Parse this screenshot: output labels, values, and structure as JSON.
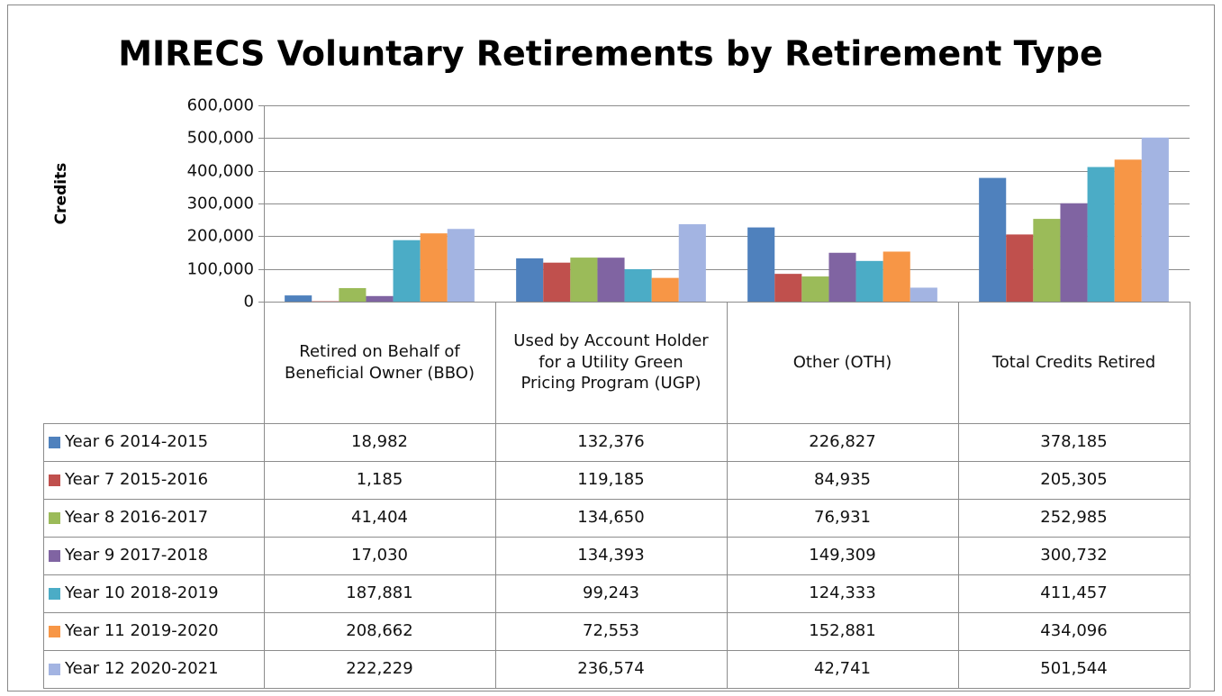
{
  "chart_data": {
    "type": "bar",
    "title": "MIRECS Voluntary Retirements by Retirement Type",
    "y_label": "Credits",
    "categories": [
      "Retired on Behalf of Beneficial Owner (BBO)",
      "Used by Account Holder for a Utility Green Pricing Program (UGP)",
      "Other (OTH)",
      "Total Credits Retired"
    ],
    "series": [
      {
        "name": "Year 6 2014-2015",
        "color": "#4f81bd",
        "values": [
          18982,
          132376,
          226827,
          378185
        ],
        "value_labels": [
          "18,982",
          "132,376",
          "226,827",
          "378,185"
        ]
      },
      {
        "name": "Year 7 2015-2016",
        "color": "#c0504d",
        "values": [
          1185,
          119185,
          84935,
          205305
        ],
        "value_labels": [
          "1,185",
          "119,185",
          "84,935",
          "205,305"
        ]
      },
      {
        "name": "Year 8 2016-2017",
        "color": "#9bbb59",
        "values": [
          41404,
          134650,
          76931,
          252985
        ],
        "value_labels": [
          "41,404",
          "134,650",
          "76,931",
          "252,985"
        ]
      },
      {
        "name": "Year 9 2017-2018",
        "color": "#8064a2",
        "values": [
          17030,
          134393,
          149309,
          300732
        ],
        "value_labels": [
          "17,030",
          "134,393",
          "149,309",
          "300,732"
        ]
      },
      {
        "name": "Year 10 2018-2019",
        "color": "#4bacc6",
        "values": [
          187881,
          99243,
          124333,
          411457
        ],
        "value_labels": [
          "187,881",
          "99,243",
          "124,333",
          "411,457"
        ]
      },
      {
        "name": "Year 11 2019-2020",
        "color": "#f79646",
        "values": [
          208662,
          72553,
          152881,
          434096
        ],
        "value_labels": [
          "208,662",
          "72,553",
          "152,881",
          "434,096"
        ]
      },
      {
        "name": "Year 12 2020-2021",
        "color": "#a3b4e2",
        "values": [
          222229,
          236574,
          42741,
          501544
        ],
        "value_labels": [
          "222,229",
          "236,574",
          "42,741",
          "501,544"
        ]
      }
    ],
    "ylim": [
      0,
      600000
    ],
    "yticks": [
      0,
      {
        "value": 100000,
        "label": "100,000"
      },
      {
        "value": 200000,
        "label": "200,000"
      },
      {
        "value": 300000,
        "label": "300,000"
      },
      {
        "value": 400000,
        "label": "400,000"
      },
      {
        "value": 500000,
        "label": "500,000"
      },
      {
        "value": 600000,
        "label": "600,000"
      }
    ],
    "grid": true
  }
}
